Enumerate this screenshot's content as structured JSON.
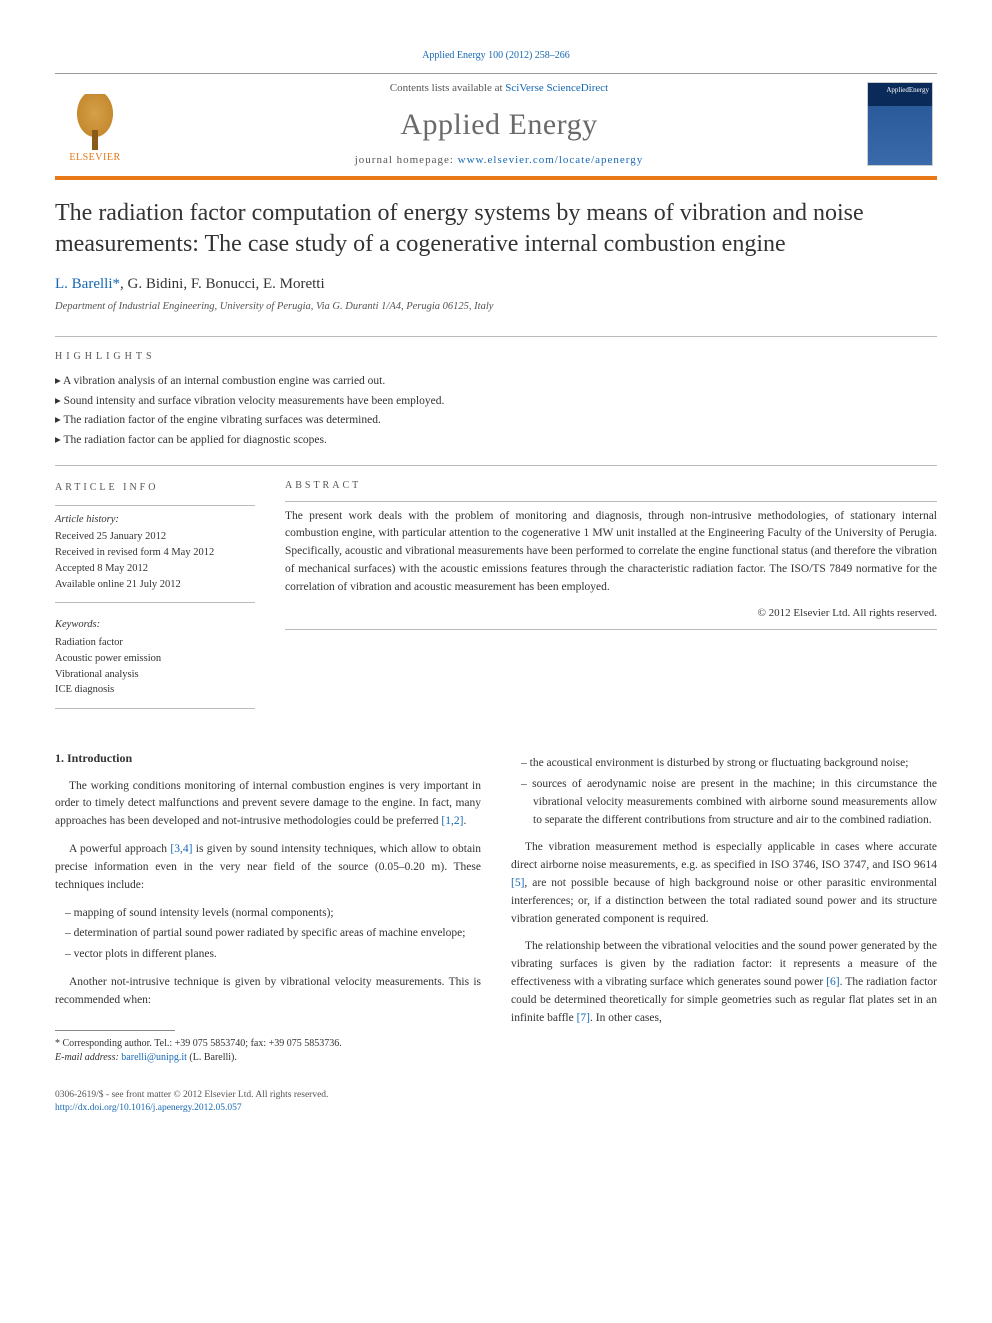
{
  "citation": "Applied Energy 100 (2012) 258–266",
  "header": {
    "contents_prefix": "Contents lists available at ",
    "contents_link": "SciVerse ScienceDirect",
    "journal": "Applied Energy",
    "homepage_prefix": "journal homepage: ",
    "homepage_url": "www.elsevier.com/locate/apenergy",
    "publisher": "ELSEVIER",
    "cover_label": "AppliedEnergy"
  },
  "title": "The radiation factor computation of energy systems by means of vibration and noise measurements: The case study of a cogenerative internal combustion engine",
  "authors_html": "L. Barelli",
  "authors_rest": ", G. Bidini, F. Bonucci, E. Moretti",
  "corresponding_mark": "*",
  "affiliation": "Department of Industrial Engineering, University of Perugia, Via G. Duranti 1/A4, Perugia 06125, Italy",
  "highlights_label": "HIGHLIGHTS",
  "highlights": [
    "A vibration analysis of an internal combustion engine was carried out.",
    "Sound intensity and surface vibration velocity measurements have been employed.",
    "The radiation factor of the engine vibrating surfaces was determined.",
    "The radiation factor can be applied for diagnostic scopes."
  ],
  "article_info_label": "ARTICLE INFO",
  "abstract_label": "ABSTRACT",
  "history_head": "Article history:",
  "history": [
    "Received 25 January 2012",
    "Received in revised form 4 May 2012",
    "Accepted 8 May 2012",
    "Available online 21 July 2012"
  ],
  "keywords_head": "Keywords:",
  "keywords": [
    "Radiation factor",
    "Acoustic power emission",
    "Vibrational analysis",
    "ICE diagnosis"
  ],
  "abstract": "The present work deals with the problem of monitoring and diagnosis, through non-intrusive methodologies, of stationary internal combustion engine, with particular attention to the cogenerative 1 MW unit installed at the Engineering Faculty of the University of Perugia. Specifically, acoustic and vibrational measurements have been performed to correlate the engine functional status (and therefore the vibration of mechanical surfaces) with the acoustic emissions features through the characteristic radiation factor. The ISO/TS 7849 normative for the correlation of vibration and acoustic measurement has been employed.",
  "copyright": "© 2012 Elsevier Ltd. All rights reserved.",
  "intro_head": "1. Introduction",
  "col1": {
    "p1a": "The working conditions monitoring of internal combustion engines is very important in order to timely detect malfunctions and prevent severe damage to the engine. In fact, many approaches has been developed and not-intrusive methodologies could be preferred ",
    "ref1": "[1,2]",
    "p1b": ".",
    "p2a": "A powerful approach ",
    "ref2": "[3,4]",
    "p2b": " is given by sound intensity techniques, which allow to obtain precise information even in the very near field of the source (0.05–0.20 m). These techniques include:",
    "list1": [
      "mapping of sound intensity levels (normal components);",
      "determination of partial sound power radiated by specific areas of machine envelope;",
      "vector plots in different planes."
    ],
    "p3": "Another not-intrusive technique is given by vibrational velocity measurements. This is recommended when:"
  },
  "col2": {
    "list1": [
      "the acoustical environment is disturbed by strong or fluctuating background noise;",
      "sources of aerodynamic noise are present in the machine; in this circumstance the vibrational velocity measurements combined with airborne sound measurements allow to separate the different contributions from structure and air to the combined radiation."
    ],
    "p1a": "The vibration measurement method is especially applicable in cases where accurate direct airborne noise measurements, e.g. as specified in ISO 3746, ISO 3747, and ISO 9614 ",
    "ref5": "[5]",
    "p1b": ", are not possible because of high background noise or other parasitic environmental interferences; or, if a distinction between the total radiated sound power and its structure vibration generated component is required.",
    "p2a": "The relationship between the vibrational velocities and the sound power generated by the vibrating surfaces is given by the radiation factor: it represents a measure of the effectiveness with a vibrating surface which generates sound power ",
    "ref6": "[6]",
    "p2b": ". The radiation factor could be determined theoretically for simple geometries such as regular flat plates set in an infinite baffle ",
    "ref7": "[7]",
    "p2c": ". In other cases,"
  },
  "footnote": {
    "corr": "* Corresponding author. Tel.: +39 075 5853740; fax: +39 075 5853736.",
    "email_label": "E-mail address:",
    "email": "barelli@unipg.it",
    "email_who": " (L. Barelli)."
  },
  "footer": {
    "line1": "0306-2619/$ - see front matter © 2012 Elsevier Ltd. All rights reserved.",
    "doi": "http://dx.doi.org/10.1016/j.apenergy.2012.05.057"
  },
  "colors": {
    "accent_orange": "#e67817",
    "link_blue": "#1768b3",
    "text_gray": "#555555"
  }
}
